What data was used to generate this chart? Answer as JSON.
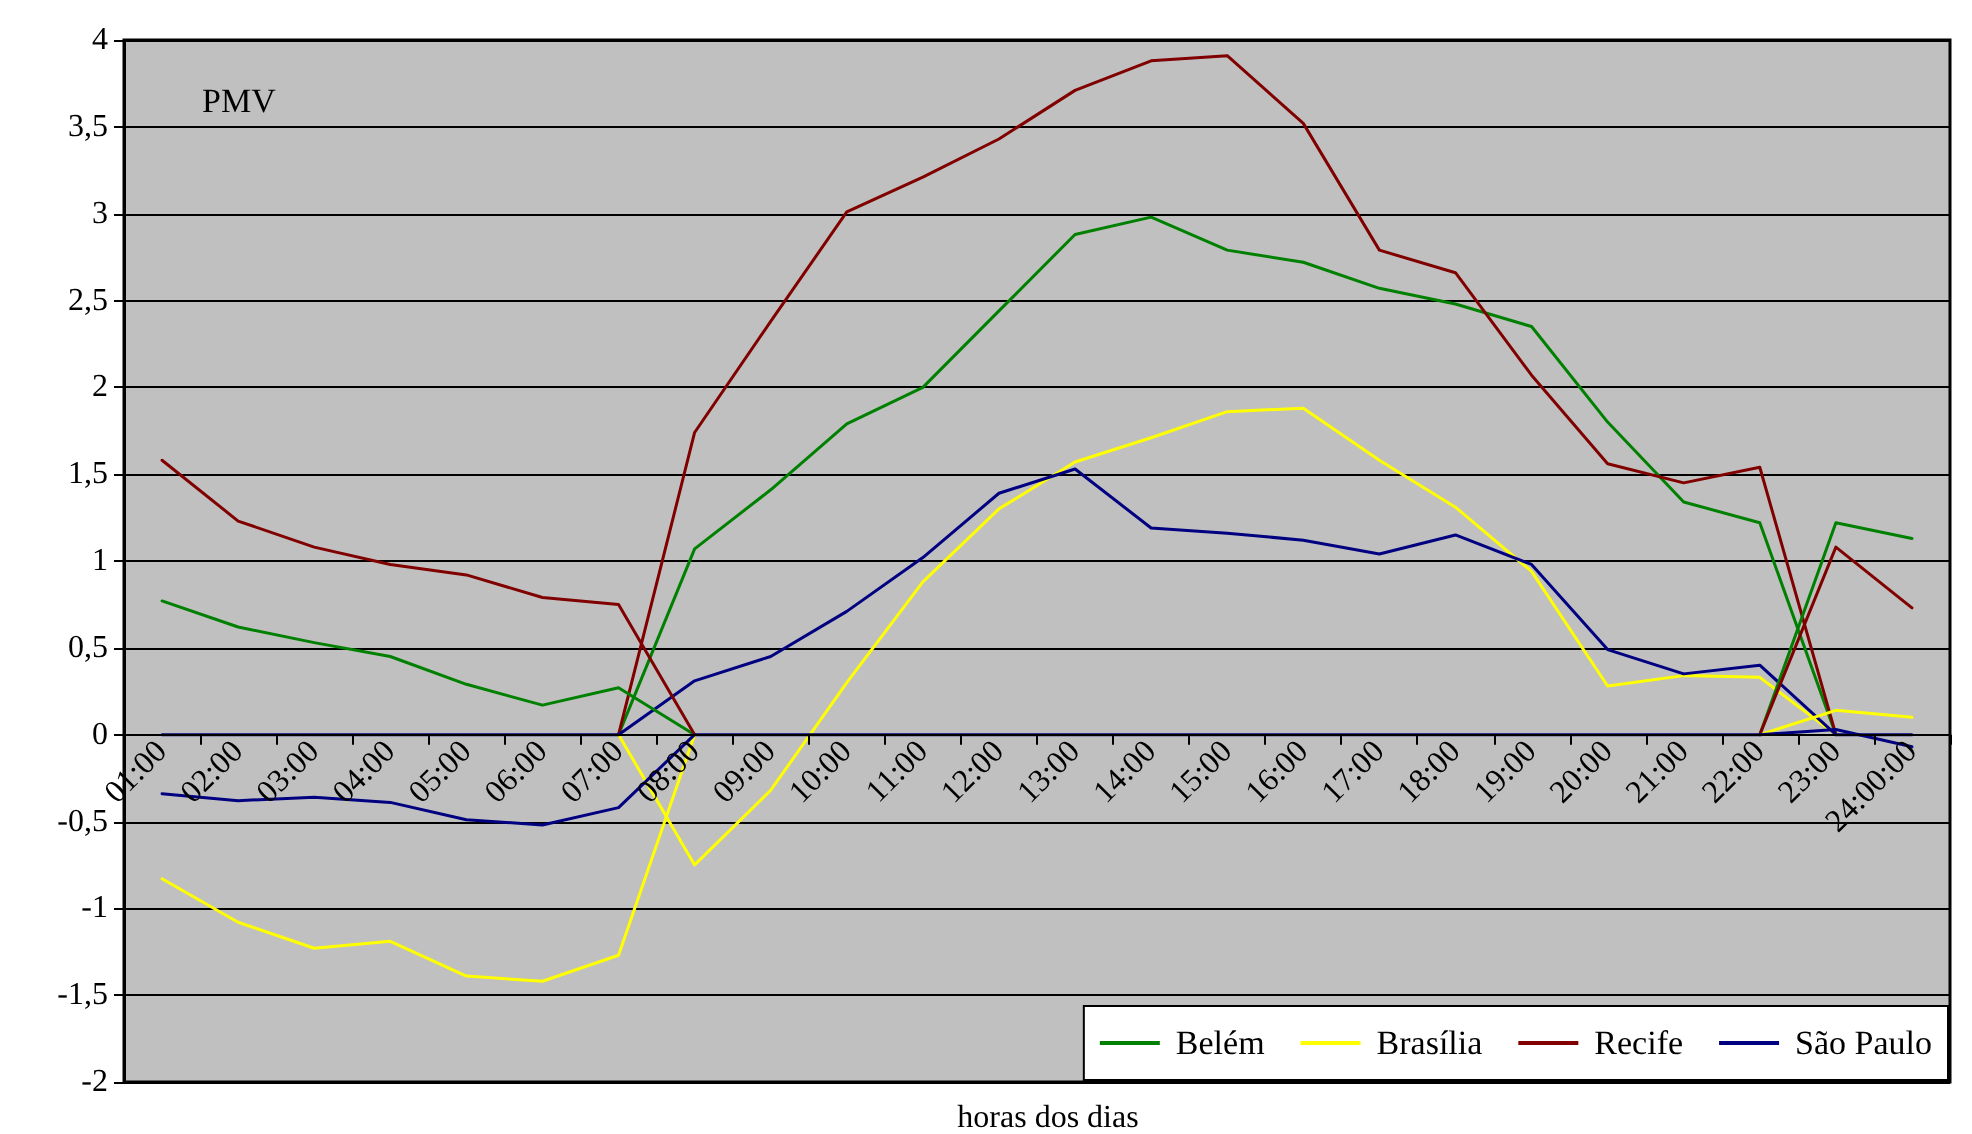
{
  "chart_data": {
    "type": "line",
    "title": "PMV",
    "xlabel": "horas dos dias",
    "categories": [
      "01:00",
      "02:00",
      "03:00",
      "04:00",
      "05:00",
      "06:00",
      "07:00",
      "08:00",
      "09:00",
      "10:00",
      "11:00",
      "12:00",
      "13:00",
      "14:00",
      "15:00",
      "16:00",
      "17:00",
      "18:00",
      "19:00",
      "20:00",
      "21:00",
      "22:00",
      "23:00",
      "24:00:00"
    ],
    "series": [
      {
        "name": "Belém",
        "color": "#008000",
        "values": [
          null,
          null,
          null,
          null,
          null,
          null,
          0,
          1.07,
          1.41,
          1.79,
          2.0,
          2.44,
          2.88,
          2.98,
          2.79,
          2.72,
          2.57,
          2.48,
          2.35,
          1.8,
          1.34,
          1.22,
          0,
          null
        ]
      },
      {
        "name": "Brasília",
        "color": "#ffff00",
        "values": [
          null,
          null,
          null,
          null,
          null,
          null,
          0,
          -0.75,
          -0.32,
          0.3,
          0.88,
          1.3,
          1.57,
          1.71,
          1.86,
          1.88,
          1.58,
          1.31,
          0.94,
          0.28,
          0.34,
          0.33,
          0,
          null
        ]
      },
      {
        "name": "Recife",
        "color": "#800000",
        "values": [
          null,
          null,
          null,
          null,
          null,
          null,
          0,
          1.74,
          2.38,
          3.01,
          3.21,
          3.43,
          3.71,
          3.88,
          3.91,
          3.52,
          2.79,
          2.66,
          2.07,
          1.56,
          1.45,
          1.54,
          0,
          null
        ]
      },
      {
        "name": "São Paulo",
        "color": "#000080",
        "values": [
          0,
          0,
          0,
          0,
          0,
          0,
          0,
          0.31,
          0.45,
          0.71,
          1.02,
          1.39,
          1.53,
          1.19,
          1.16,
          1.12,
          1.04,
          1.15,
          0.98,
          0.49,
          0.35,
          0.4,
          0,
          0
        ]
      },
      {
        "color": "#008000",
        "values": [
          0.77,
          0.62,
          0.53,
          0.45,
          0.29,
          0.17,
          0.27,
          0,
          null,
          null,
          null,
          null,
          null,
          null,
          null,
          null,
          null,
          null,
          null,
          null,
          null,
          0,
          1.22,
          1.13
        ]
      },
      {
        "color": "#ffff00",
        "values": [
          -0.83,
          -1.08,
          -1.23,
          -1.19,
          -1.39,
          -1.42,
          -1.27,
          0,
          null,
          null,
          null,
          null,
          null,
          null,
          null,
          null,
          null,
          null,
          null,
          null,
          null,
          0,
          0.14,
          0.1
        ]
      },
      {
        "color": "#800000",
        "values": [
          1.58,
          1.23,
          1.08,
          0.98,
          0.92,
          0.79,
          0.75,
          0,
          null,
          null,
          null,
          null,
          null,
          null,
          null,
          null,
          null,
          null,
          null,
          null,
          null,
          0,
          1.08,
          0.73
        ]
      },
      {
        "color": "#000080",
        "values": [
          -0.34,
          -0.38,
          -0.36,
          -0.39,
          -0.49,
          -0.52,
          -0.42,
          0,
          0,
          0,
          0,
          0,
          0,
          0,
          0,
          0,
          0,
          0,
          0,
          0,
          0,
          0,
          0.03,
          -0.07
        ]
      }
    ],
    "ylim": [
      -2,
      4
    ],
    "yticks": [
      -2,
      {
        "value": -1.5,
        "label": "-1,5"
      },
      -1,
      {
        "value": -0.5,
        "label": "-0,5"
      },
      0,
      {
        "value": 0.5,
        "label": "0,5"
      },
      1,
      {
        "value": 1.5,
        "label": "1,5"
      },
      2,
      {
        "value": 2.5,
        "label": "2,5"
      },
      3,
      {
        "value": 3.5,
        "label": "3,5"
      },
      4
    ],
    "grid": "y",
    "legend": "bottom right",
    "marker": "none",
    "line_style": "solid"
  }
}
